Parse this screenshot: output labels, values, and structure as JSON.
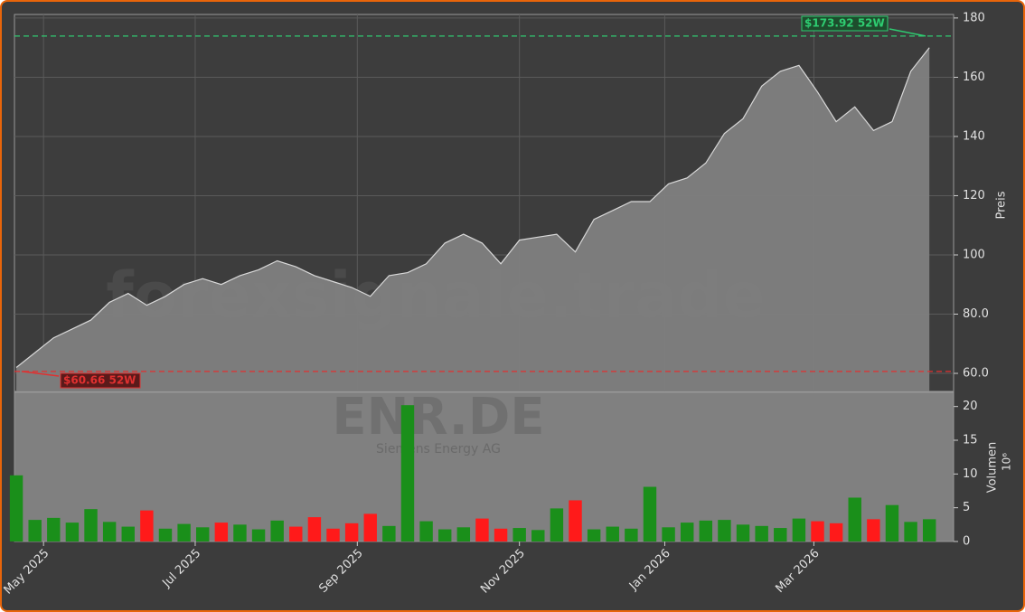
{
  "chart_data": [
    {
      "type": "area",
      "watermark": "forexsignale.trade",
      "ylabel": "Preis",
      "color": "#808080",
      "line_color": "#d8d8d8",
      "grid": true,
      "x": [
        0,
        1,
        2,
        3,
        4,
        5,
        6,
        7,
        8,
        9,
        10,
        11,
        12,
        13,
        14,
        15,
        16,
        17,
        18,
        19,
        20,
        21,
        22,
        23,
        24,
        25,
        26,
        27,
        28,
        29,
        30,
        31,
        32,
        33,
        34,
        35,
        36,
        37,
        38,
        39,
        40,
        41,
        42,
        43,
        44,
        45,
        46,
        47,
        48,
        49
      ],
      "values": [
        62,
        67,
        72,
        75,
        78,
        84,
        87,
        83,
        86,
        90,
        92,
        90,
        93,
        95,
        98,
        96,
        93,
        91,
        89,
        86,
        93,
        94,
        97,
        104,
        107,
        104,
        97,
        105,
        106,
        107,
        101,
        112,
        115,
        118,
        118,
        124,
        126,
        131,
        141,
        146,
        157,
        162,
        164,
        155,
        145,
        150,
        142,
        145,
        162,
        170
      ],
      "xlim": [
        -0.1,
        50.3
      ],
      "ylim": [
        53.9,
        181.2
      ],
      "yticks": [
        {
          "value": 60,
          "label": "60.0"
        },
        {
          "value": 80,
          "label": "80.0"
        },
        100,
        120,
        140,
        160,
        180
      ],
      "xticks": [
        1.46,
        9.6,
        18.3,
        27.0,
        34.8,
        42.8
      ],
      "annotations": [
        {
          "value": 173.92,
          "label": "$173.92 52W",
          "color": "#2ecc71"
        },
        {
          "value": 60.66,
          "label": "$60.66 52W",
          "color": "#e03030"
        }
      ]
    },
    {
      "type": "bar",
      "watermark": "ENR.DE",
      "subtitle": "Siemens Energy AG",
      "ylabel": "Volumen",
      "yunit": "10⁶",
      "up_color": "#1a8f1a",
      "down_color": "#ff1a1a",
      "x": [
        0,
        1,
        2,
        3,
        4,
        5,
        6,
        7,
        8,
        9,
        10,
        11,
        12,
        13,
        14,
        15,
        16,
        17,
        18,
        19,
        20,
        21,
        22,
        23,
        24,
        25,
        26,
        27,
        28,
        29,
        30,
        31,
        32,
        33,
        34,
        35,
        36,
        37,
        38,
        39,
        40,
        41,
        42,
        43,
        44,
        45,
        46,
        47,
        48,
        49
      ],
      "values": [
        9.8,
        3.2,
        3.5,
        2.8,
        4.8,
        2.9,
        2.2,
        4.6,
        1.9,
        2.6,
        2.1,
        2.8,
        2.5,
        1.8,
        3.1,
        2.2,
        3.6,
        1.9,
        2.7,
        4.1,
        2.3,
        20.2,
        3.0,
        1.8,
        2.1,
        3.4,
        1.9,
        2.0,
        1.7,
        4.9,
        6.1,
        1.8,
        2.2,
        1.9,
        8.1,
        2.1,
        2.8,
        3.1,
        3.2,
        2.5,
        2.3,
        2.0,
        3.4,
        3.0,
        2.7,
        6.5,
        3.3,
        5.4,
        2.9,
        3.3
      ],
      "xlim": [
        -0.1,
        50.3
      ],
      "ylim": [
        0,
        22.1
      ],
      "yticks": [
        0,
        5,
        10,
        15,
        20
      ],
      "xticks": [
        {
          "value": 1.46,
          "label": "May 2025"
        },
        {
          "value": 9.6,
          "label": "Jul 2025"
        },
        {
          "value": 18.3,
          "label": "Sep 2025"
        },
        {
          "value": 27.0,
          "label": "Nov 2025"
        },
        {
          "value": 34.8,
          "label": "Jan 2026"
        },
        {
          "value": 42.8,
          "label": "Mar 2026"
        }
      ]
    }
  ]
}
